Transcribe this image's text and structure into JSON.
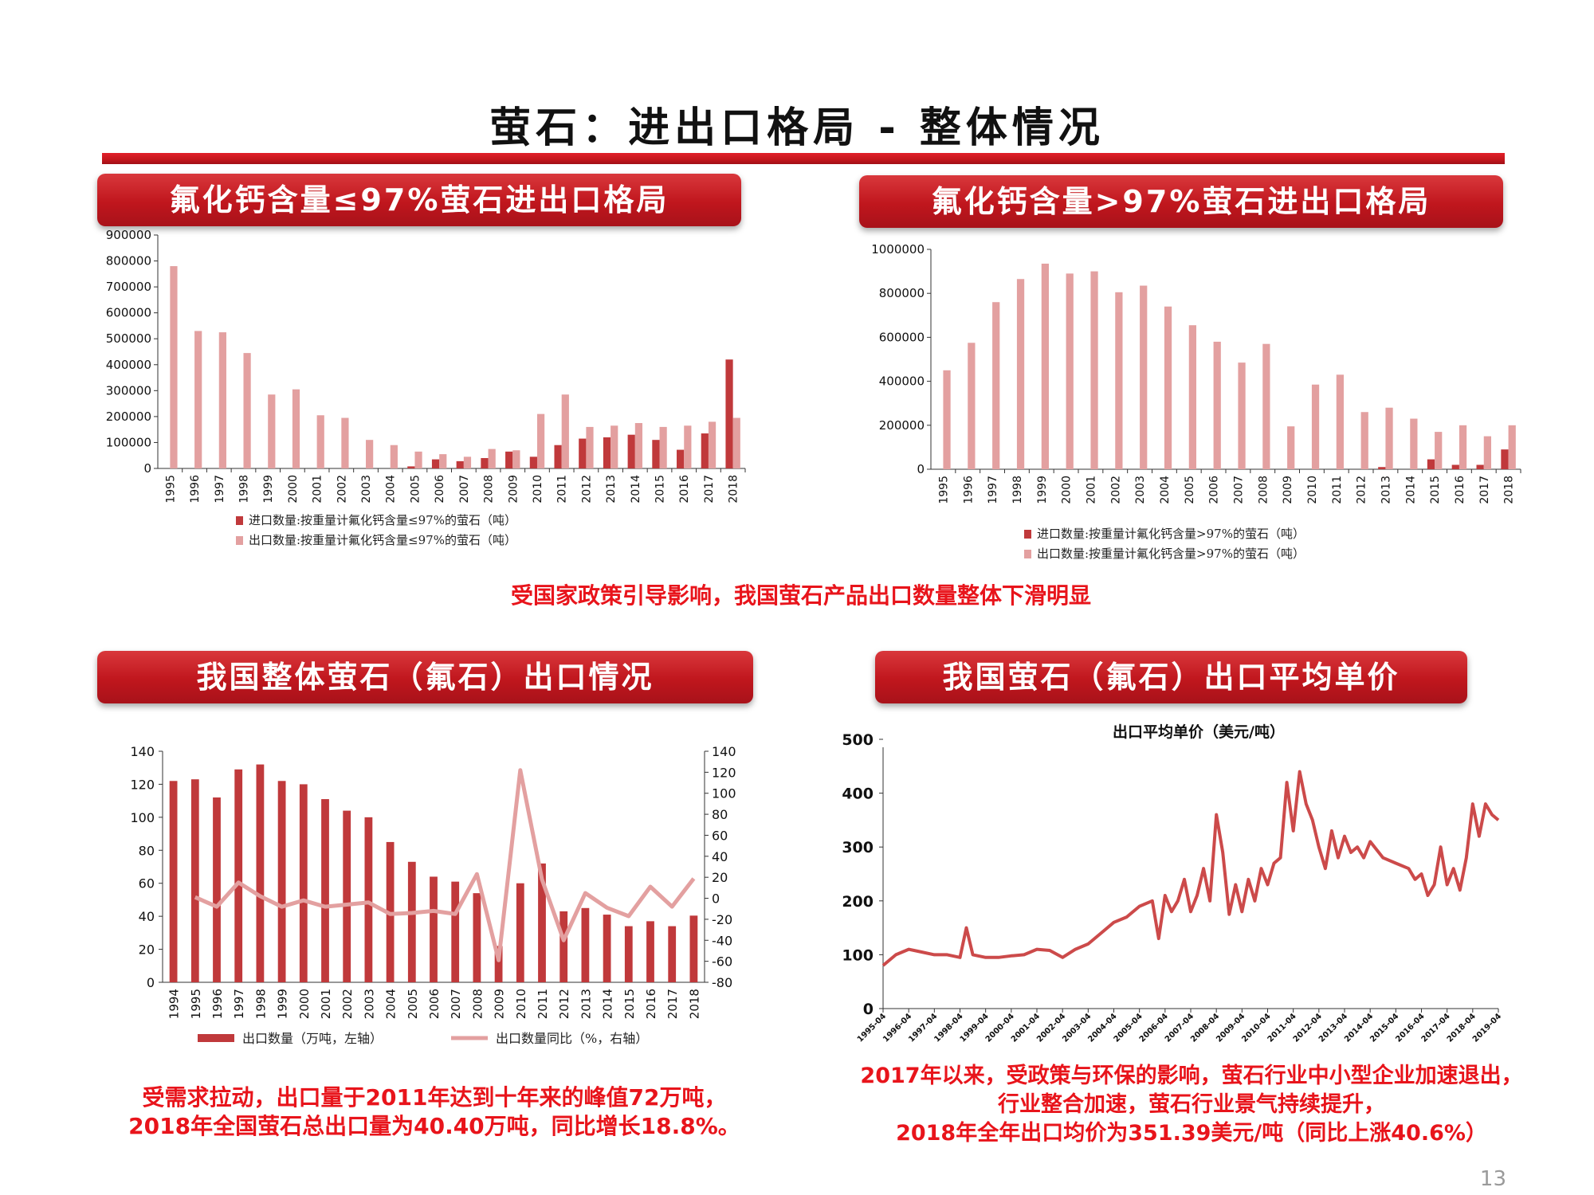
{
  "slide": {
    "title": "萤石：进出口格局  -  整体情况",
    "page_number": "13"
  },
  "panels": {
    "p1": "氟化钙含量≤97%萤石进出口格局",
    "p2": "氟化钙含量>97%萤石进出口格局",
    "p3": "我国整体萤石（氟石）出口情况",
    "p4": "我国萤石（氟石）出口平均单价"
  },
  "notes": {
    "mid": "受国家政策引导影响，我国萤石产品出口数量整体下滑明显",
    "left_1": "受需求拉动，出口量于2011年达到十年来的峰值72万吨，",
    "left_2": "2018年全国萤石总出口量为40.40万吨，同比增长18.8%。",
    "right_1": "2017年以来，受政策与环保的影响，萤石行业中小型企业加速退出，",
    "right_2": "行业整合加速，萤石行业景气持续提升，",
    "right_3": "2018年全年出口均价为351.39美元/吨（同比上涨40.6%）"
  },
  "colors": {
    "import_bar": "#c0393b",
    "export_bar": "#e3a0a0",
    "total_bar": "#c0393b",
    "yoy_line": "#e3a0a0",
    "price_line": "#cc4a4a"
  },
  "chart_data": [
    {
      "id": "chart1",
      "type": "bar",
      "title": "",
      "categories": [
        "1995",
        "1996",
        "1997",
        "1998",
        "1999",
        "2000",
        "2001",
        "2002",
        "2003",
        "2004",
        "2005",
        "2006",
        "2007",
        "2008",
        "2009",
        "2010",
        "2011",
        "2012",
        "2013",
        "2014",
        "2015",
        "2016",
        "2017",
        "2018"
      ],
      "ylim": [
        0,
        900000
      ],
      "yticks": [
        0,
        100000,
        200000,
        300000,
        400000,
        500000,
        600000,
        700000,
        800000,
        900000
      ],
      "series": [
        {
          "name": "进口数量:按重量计氟化钙含量≤97%的萤石（吨）",
          "values": [
            0,
            0,
            0,
            0,
            0,
            0,
            0,
            0,
            0,
            0,
            8000,
            35000,
            28000,
            40000,
            65000,
            45000,
            90000,
            115000,
            120000,
            130000,
            110000,
            72000,
            135000,
            420000
          ]
        },
        {
          "name": "出口数量:按重量计氟化钙含量≤97%的萤石（吨）",
          "values": [
            780000,
            530000,
            525000,
            445000,
            285000,
            305000,
            205000,
            195000,
            110000,
            90000,
            65000,
            55000,
            45000,
            75000,
            70000,
            210000,
            285000,
            160000,
            165000,
            175000,
            160000,
            165000,
            180000,
            195000
          ]
        }
      ]
    },
    {
      "id": "chart2",
      "type": "bar",
      "title": "",
      "categories": [
        "1995",
        "1996",
        "1997",
        "1998",
        "1999",
        "2000",
        "2001",
        "2002",
        "2003",
        "2004",
        "2005",
        "2006",
        "2007",
        "2008",
        "2009",
        "2010",
        "2011",
        "2012",
        "2013",
        "2014",
        "2015",
        "2016",
        "2017",
        "2018"
      ],
      "ylim": [
        0,
        1000000
      ],
      "yticks": [
        0,
        200000,
        400000,
        600000,
        800000,
        1000000
      ],
      "series": [
        {
          "name": "进口数量:按重量计氟化钙含量>97%的萤石（吨）",
          "values": [
            0,
            0,
            0,
            0,
            0,
            0,
            0,
            0,
            0,
            0,
            0,
            0,
            0,
            0,
            0,
            0,
            0,
            0,
            10000,
            0,
            45000,
            20000,
            20000,
            90000
          ]
        },
        {
          "name": "出口数量:按重量计氟化钙含量>97%的萤石（吨）",
          "values": [
            450000,
            575000,
            760000,
            865000,
            935000,
            890000,
            900000,
            805000,
            835000,
            740000,
            655000,
            580000,
            485000,
            570000,
            195000,
            385000,
            430000,
            260000,
            280000,
            230000,
            170000,
            200000,
            150000,
            200000
          ]
        }
      ]
    },
    {
      "id": "chart3",
      "type": "bar",
      "title": "",
      "categories": [
        "1994",
        "1995",
        "1996",
        "1997",
        "1998",
        "1999",
        "2000",
        "2001",
        "2002",
        "2003",
        "2004",
        "2005",
        "2006",
        "2007",
        "2008",
        "2009",
        "2010",
        "2011",
        "2012",
        "2013",
        "2014",
        "2015",
        "2016",
        "2017",
        "2018"
      ],
      "ylim_left": [
        0,
        140
      ],
      "yticks_left": [
        0,
        20,
        40,
        60,
        80,
        100,
        120,
        140
      ],
      "ylim_right": [
        -80,
        140
      ],
      "yticks_right": [
        -80,
        -60,
        -40,
        -20,
        0,
        20,
        40,
        60,
        80,
        100,
        120,
        140
      ],
      "series": [
        {
          "name": "出口数量（万吨，左轴）",
          "type": "bar",
          "values": [
            122,
            123,
            112,
            129,
            132,
            122,
            120,
            111,
            104,
            100,
            85,
            73,
            64,
            61,
            54,
            22,
            60,
            72,
            43,
            45,
            41,
            34,
            37,
            34,
            40.4
          ]
        },
        {
          "name": "出口数量同比（%，右轴）",
          "type": "line",
          "values": [
            null,
            1,
            -8,
            15,
            2,
            -8,
            -2,
            -8,
            -6,
            -4,
            -15,
            -14,
            -12,
            -15,
            23,
            -59,
            122,
            18,
            -40,
            5,
            -9,
            -17,
            11,
            -8,
            18.8
          ]
        }
      ]
    },
    {
      "id": "chart4",
      "type": "line",
      "title": "出口平均单价（美元/吨）",
      "x_start": "1995-04",
      "x_end": "2019-04",
      "xticks": [
        "1995-04",
        "1996-04",
        "1997-04",
        "1998-04",
        "1999-04",
        "2000-04",
        "2001-04",
        "2002-04",
        "2003-04",
        "2004-04",
        "2005-04",
        "2006-04",
        "2007-04",
        "2008-04",
        "2009-04",
        "2010-04",
        "2011-04",
        "2012-04",
        "2013-04",
        "2014-04",
        "2015-04",
        "2016-04",
        "2017-04",
        "2018-04",
        "2019-04"
      ],
      "ylim": [
        0,
        500
      ],
      "yticks": [
        0,
        100,
        200,
        300,
        400,
        500
      ],
      "series": [
        {
          "name": "出口平均单价（美元/吨）",
          "x": [
            "1995-04",
            "1995-10",
            "1996-04",
            "1996-10",
            "1997-04",
            "1997-10",
            "1998-04",
            "1998-07",
            "1998-10",
            "1999-04",
            "1999-10",
            "2000-04",
            "2000-10",
            "2001-04",
            "2001-10",
            "2002-04",
            "2002-10",
            "2003-04",
            "2003-10",
            "2004-04",
            "2004-10",
            "2005-04",
            "2005-10",
            "2006-01",
            "2006-04",
            "2006-07",
            "2006-10",
            "2007-01",
            "2007-04",
            "2007-07",
            "2007-10",
            "2008-01",
            "2008-04",
            "2008-07",
            "2008-10",
            "2009-01",
            "2009-04",
            "2009-07",
            "2009-10",
            "2010-01",
            "2010-04",
            "2010-07",
            "2010-10",
            "2011-01",
            "2011-04",
            "2011-07",
            "2011-10",
            "2012-01",
            "2012-04",
            "2012-07",
            "2012-10",
            "2013-01",
            "2013-04",
            "2013-07",
            "2013-10",
            "2014-01",
            "2014-04",
            "2014-10",
            "2015-04",
            "2015-10",
            "2016-01",
            "2016-04",
            "2016-07",
            "2016-10",
            "2017-01",
            "2017-04",
            "2017-07",
            "2017-10",
            "2018-01",
            "2018-04",
            "2018-07",
            "2018-10",
            "2019-01",
            "2019-04"
          ],
          "y": [
            80,
            100,
            110,
            105,
            100,
            100,
            95,
            150,
            100,
            95,
            95,
            98,
            100,
            110,
            108,
            95,
            110,
            120,
            140,
            160,
            170,
            190,
            200,
            130,
            210,
            180,
            200,
            240,
            180,
            210,
            260,
            200,
            360,
            290,
            175,
            230,
            180,
            240,
            200,
            260,
            230,
            270,
            280,
            420,
            330,
            440,
            380,
            350,
            300,
            260,
            330,
            280,
            320,
            290,
            300,
            280,
            310,
            280,
            270,
            260,
            240,
            250,
            210,
            230,
            300,
            230,
            260,
            220,
            280,
            380,
            320,
            380,
            360,
            350
          ]
        }
      ]
    }
  ],
  "legends": {
    "c1_import": "进口数量:按重量计氟化钙含量≤97%的萤石（吨）",
    "c1_export": "出口数量:按重量计氟化钙含量≤97%的萤石（吨）",
    "c2_import": "进口数量:按重量计氟化钙含量>97%的萤石（吨）",
    "c2_export": "出口数量:按重量计氟化钙含量>97%的萤石（吨）",
    "c3_bar": "出口数量（万吨，左轴）",
    "c3_line": "出口数量同比（%，右轴）"
  }
}
